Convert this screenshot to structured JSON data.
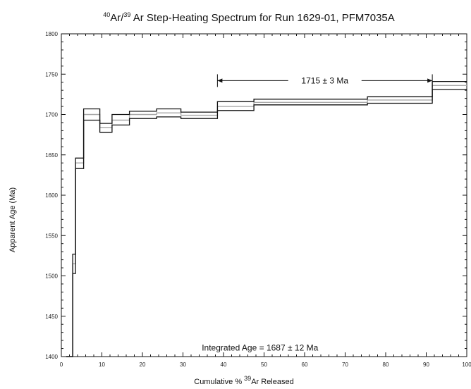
{
  "chart_data": {
    "type": "line",
    "title": {
      "sup1": "40",
      "part1": "Ar/",
      "sup2": "39",
      "part2": " Ar Step-Heating Spectrum for Run 1629-01, PFM7035A"
    },
    "xlabel": {
      "part1": "Cumulative % ",
      "sup": "39",
      "part2": "Ar Released"
    },
    "ylabel": "Apparent Age (Ma)",
    "xlim": [
      0,
      100
    ],
    "ylim": [
      1400,
      1800
    ],
    "x_ticks": [
      "0",
      "10",
      "20",
      "30",
      "40",
      "50",
      "60",
      "70",
      "80",
      "90",
      "100"
    ],
    "y_ticks": [
      "1400",
      "1450",
      "1500",
      "1550",
      "1600",
      "1650",
      "1700",
      "1750",
      "1800"
    ],
    "grid": false,
    "steps": [
      {
        "x_start": 1.2,
        "x_end": 2.8,
        "age_low": 1400,
        "age_high": 1400,
        "age": 1400
      },
      {
        "x_start": 2.8,
        "x_end": 3.5,
        "age_low": 1503,
        "age_high": 1527,
        "age": 1515
      },
      {
        "x_start": 3.5,
        "x_end": 5.5,
        "age_low": 1633,
        "age_high": 1646,
        "age": 1640
      },
      {
        "x_start": 5.5,
        "x_end": 9.5,
        "age_low": 1693,
        "age_high": 1707,
        "age": 1700
      },
      {
        "x_start": 9.5,
        "x_end": 12.5,
        "age_low": 1678,
        "age_high": 1689,
        "age": 1684
      },
      {
        "x_start": 12.5,
        "x_end": 16.8,
        "age_low": 1687,
        "age_high": 1700,
        "age": 1693
      },
      {
        "x_start": 16.8,
        "x_end": 23.5,
        "age_low": 1695,
        "age_high": 1704,
        "age": 1700
      },
      {
        "x_start": 23.5,
        "x_end": 29.5,
        "age_low": 1697,
        "age_high": 1707,
        "age": 1702
      },
      {
        "x_start": 29.5,
        "x_end": 38.5,
        "age_low": 1695,
        "age_high": 1703,
        "age": 1699
      },
      {
        "x_start": 38.5,
        "x_end": 47.5,
        "age_low": 1705,
        "age_high": 1716,
        "age": 1710
      },
      {
        "x_start": 47.5,
        "x_end": 75.5,
        "age_low": 1712,
        "age_high": 1719,
        "age": 1715
      },
      {
        "x_start": 75.5,
        "x_end": 91.5,
        "age_low": 1714,
        "age_high": 1722,
        "age": 1718
      },
      {
        "x_start": 91.5,
        "x_end": 100,
        "age_low": 1731,
        "age_high": 1741,
        "age": 1736
      }
    ],
    "plateau": {
      "label": "1715 ± 3 Ma",
      "x_start": 38.5,
      "x_end": 91.5,
      "age": 1742
    },
    "annotations": [
      {
        "text": "Integrated Age = 1687 ± 12 Ma",
        "x": 49,
        "age": 1404
      }
    ],
    "colors": {
      "envelope": "#111111",
      "mean": "#a8a8a8"
    }
  }
}
